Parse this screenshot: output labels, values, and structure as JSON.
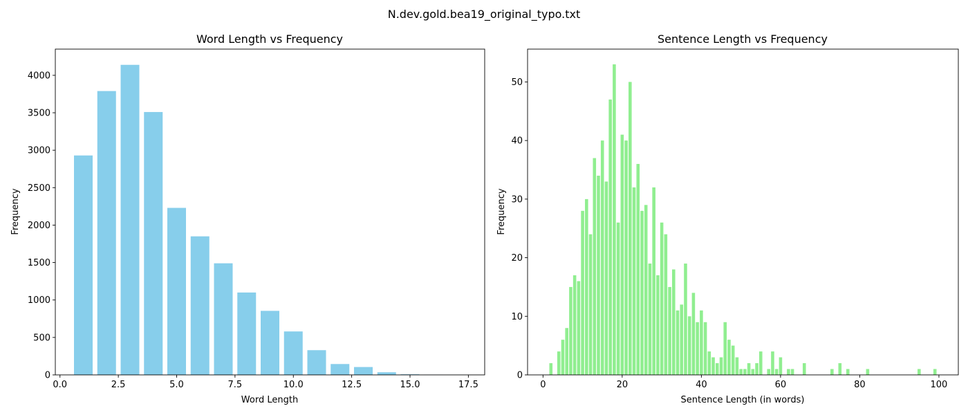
{
  "figure": {
    "suptitle": "N.dev.gold.bea19_original_typo.txt"
  },
  "chart_data": [
    {
      "type": "bar",
      "title": "Word Length vs Frequency",
      "xlabel": "Word Length",
      "ylabel": "Frequency",
      "xlim": [
        -0.2,
        18.2
      ],
      "ylim": [
        0,
        4350
      ],
      "xticks": [
        0.0,
        2.5,
        5.0,
        7.5,
        10.0,
        12.5,
        15.0,
        17.5
      ],
      "xtick_labels": [
        "0.0",
        "2.5",
        "5.0",
        "7.5",
        "10.0",
        "12.5",
        "15.0",
        "17.5"
      ],
      "yticks": [
        0,
        500,
        1000,
        1500,
        2000,
        2500,
        3000,
        3500,
        4000
      ],
      "ytick_labels": [
        "0",
        "500",
        "1000",
        "1500",
        "2000",
        "2500",
        "3000",
        "3500",
        "4000"
      ],
      "bar_width": 0.8,
      "color": "#87CEEB",
      "grid": false,
      "x": [
        1,
        2,
        3,
        4,
        5,
        6,
        7,
        8,
        9,
        10,
        11,
        12,
        13,
        14,
        15,
        16,
        17
      ],
      "values": [
        2930,
        3790,
        4140,
        3510,
        2230,
        1850,
        1490,
        1100,
        855,
        580,
        330,
        145,
        105,
        35,
        8,
        2,
        1
      ]
    },
    {
      "type": "bar",
      "title": "Sentence Length vs Frequency",
      "xlabel": "Sentence Length (in words)",
      "ylabel": "Frequency",
      "xlim": [
        -3.9,
        104.9
      ],
      "ylim": [
        0,
        55.6
      ],
      "xticks": [
        0,
        20,
        40,
        60,
        80,
        100
      ],
      "xtick_labels": [
        "0",
        "20",
        "40",
        "60",
        "80",
        "100"
      ],
      "yticks": [
        0,
        10,
        20,
        30,
        40,
        50
      ],
      "ytick_labels": [
        "0",
        "10",
        "20",
        "30",
        "40",
        "50"
      ],
      "bar_width": 0.8,
      "color": "#90EE90",
      "grid": false,
      "x": [
        2,
        4,
        5,
        6,
        7,
        8,
        9,
        10,
        11,
        12,
        13,
        14,
        15,
        16,
        17,
        18,
        19,
        20,
        21,
        22,
        23,
        24,
        25,
        26,
        27,
        28,
        29,
        30,
        31,
        32,
        33,
        34,
        35,
        36,
        37,
        38,
        39,
        40,
        41,
        42,
        43,
        44,
        45,
        46,
        47,
        48,
        49,
        50,
        51,
        52,
        53,
        54,
        55,
        57,
        58,
        59,
        60,
        62,
        63,
        66,
        73,
        75,
        77,
        82,
        95,
        99
      ],
      "values": [
        2,
        4,
        6,
        8,
        15,
        17,
        16,
        28,
        30,
        24,
        37,
        34,
        40,
        33,
        47,
        53,
        26,
        41,
        40,
        50,
        32,
        36,
        28,
        29,
        19,
        32,
        17,
        26,
        24,
        15,
        18,
        11,
        12,
        19,
        10,
        14,
        9,
        11,
        9,
        4,
        3,
        2,
        3,
        9,
        6,
        5,
        3,
        1,
        1,
        2,
        1,
        2,
        4,
        1,
        4,
        1,
        3,
        1,
        1,
        2,
        1,
        2,
        1,
        1,
        1,
        1
      ]
    }
  ]
}
